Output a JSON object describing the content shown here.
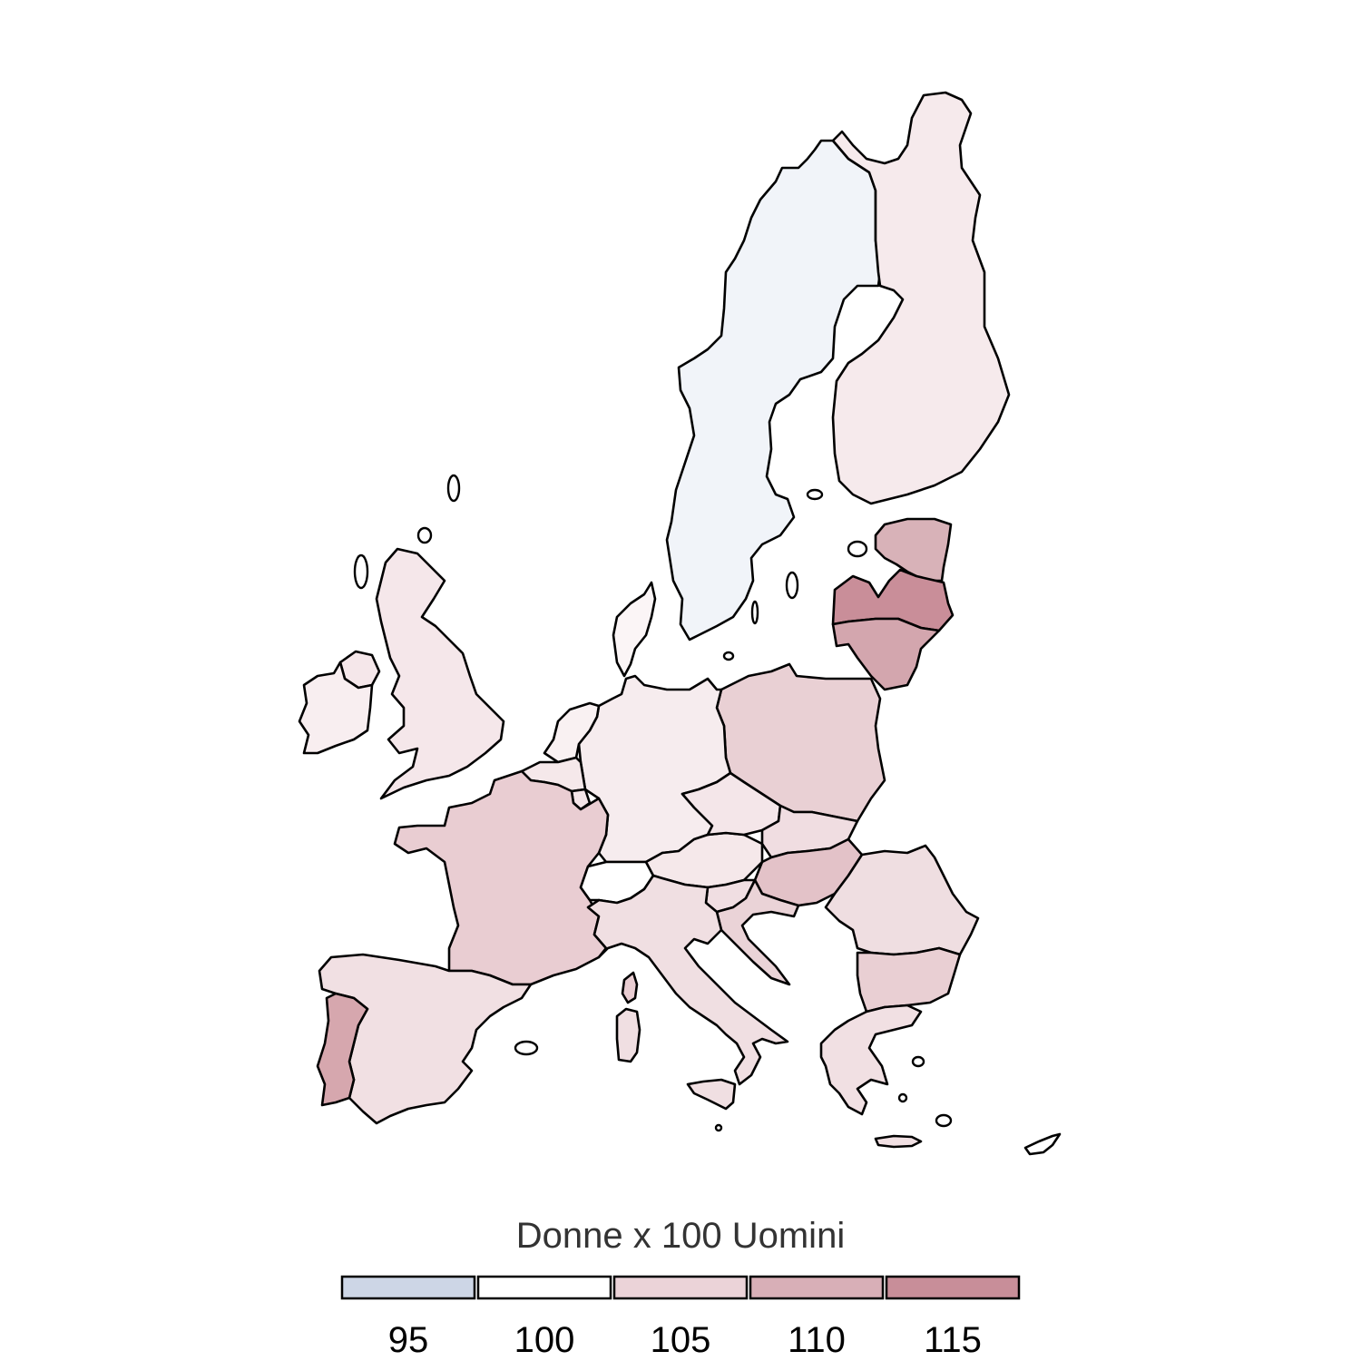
{
  "legend": {
    "title": "Donne x 100 Uomini",
    "bins": [
      {
        "label": "95",
        "color": "#cdd6e6"
      },
      {
        "label": "100",
        "color": "#ffffff"
      },
      {
        "label": "105",
        "color": "#ebd3d8"
      },
      {
        "label": "110",
        "color": "#d8afb7"
      },
      {
        "label": "115",
        "color": "#c88e99"
      }
    ]
  },
  "map_data": {
    "type": "choropleth",
    "region": "Europe (EU-28)",
    "colors": {
      "sweden": "#f1f4f9",
      "finland": "#f6eaec",
      "estonia": "#d8b2b8",
      "latvia": "#c98e99",
      "lithuania": "#d3a6ae",
      "poland": "#e9d0d4",
      "germany": "#f6ecee",
      "denmark": "#fbf5f6",
      "netherlands": "#f9f1f2",
      "belgium": "#f5e8ea",
      "luxembourg": "#f3e4e7",
      "france": "#e9cdd2",
      "uk": "#f5e7ea",
      "ireland": "#f8eef0",
      "spain": "#f1e0e3",
      "portugal": "#d6a7ae",
      "italy": "#f0dfe2",
      "switzerland": "#ffffff",
      "austria": "#f5e8ea",
      "czechia": "#f4e6e9",
      "slovakia": "#f0dde1",
      "hungary": "#e3c2c8",
      "slovenia": "#f0dee2",
      "croatia": "#ead3d7",
      "romania": "#efdee1",
      "bulgaria": "#e9cfd3",
      "greece": "#f1e0e3",
      "cyprus": "#ffffff",
      "malta": "#ffffff"
    }
  }
}
